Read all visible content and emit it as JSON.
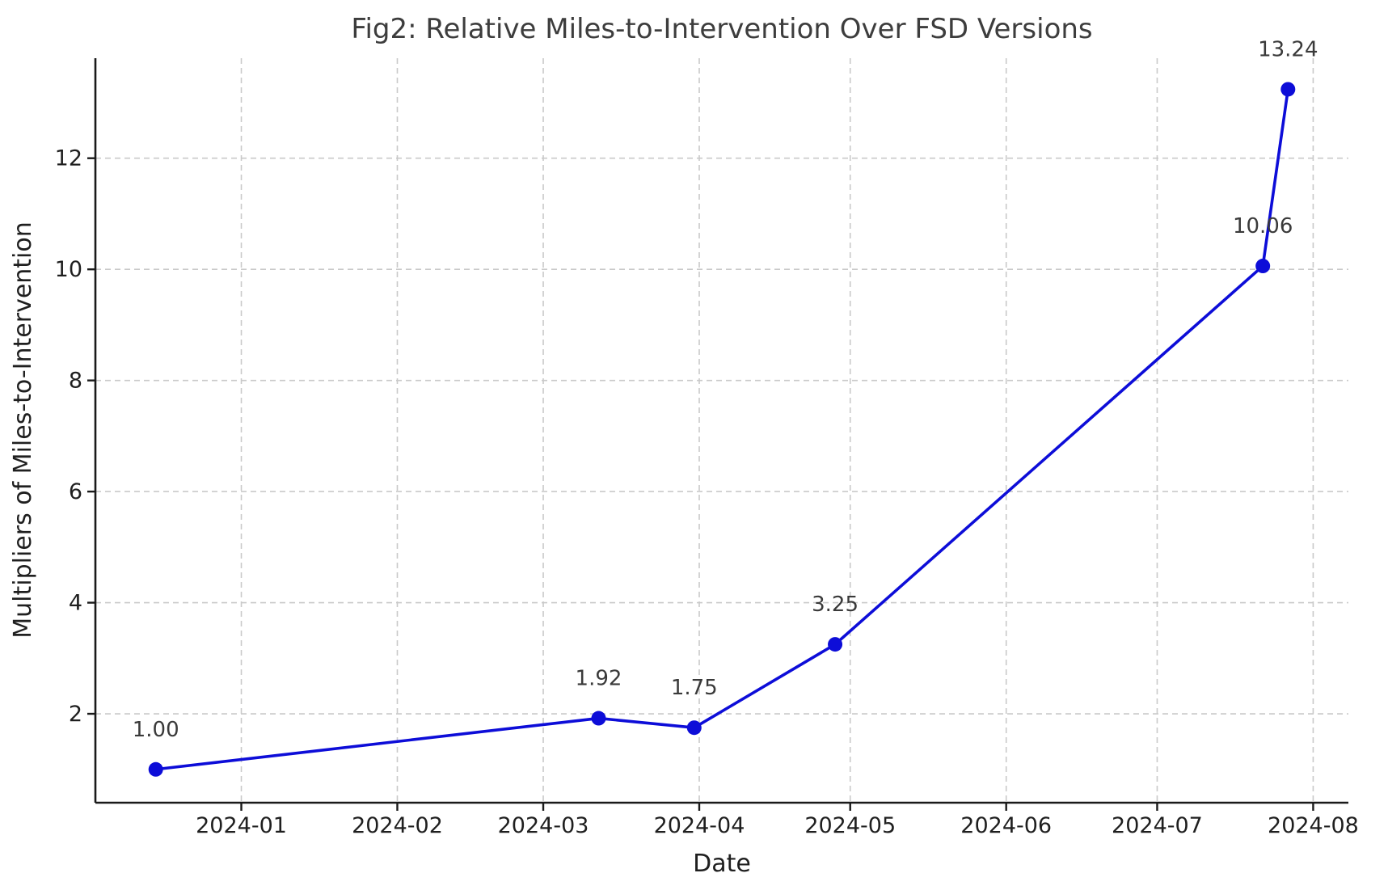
{
  "figure": {
    "background": "#ffffff"
  },
  "chart_data": {
    "type": "line",
    "title": "Fig2: Relative Miles-to-Intervention Over FSD Versions",
    "xlabel": "Date",
    "ylabel": "Multipliers of Miles-to-Intervention",
    "x": [
      "2023-12-15",
      "2024-03-12",
      "2024-03-31",
      "2024-04-28",
      "2024-07-22",
      "2024-07-27"
    ],
    "y": [
      1.0,
      1.92,
      1.75,
      3.25,
      10.06,
      13.24
    ],
    "point_labels": [
      "1.00",
      "1.92",
      "1.75",
      "3.25",
      "10.06",
      "13.24"
    ],
    "x_tick_labels": [
      "2024-01",
      "2024-02",
      "2024-03",
      "2024-04",
      "2024-05",
      "2024-06",
      "2024-07",
      "2024-08"
    ],
    "x_tick_dates": [
      "2024-01-01",
      "2024-02-01",
      "2024-03-01",
      "2024-04-01",
      "2024-05-01",
      "2024-06-01",
      "2024-07-01",
      "2024-08-01"
    ],
    "y_ticks": [
      2,
      4,
      6,
      8,
      10,
      12
    ],
    "xlim": [
      "2023-12-03",
      "2024-08-08"
    ],
    "ylim": [
      0.4,
      13.8
    ],
    "grid": true,
    "legend": false,
    "colors": {
      "line": "#0d0dd8",
      "marker": "#0d0dd8",
      "grid": "#c9c9c9",
      "spine": "#1a1a1a",
      "tick_text": "#1f1f1f",
      "annotation_text": "#3a3a3a",
      "title_text": "#3d3d3d",
      "axis_label_text": "#1f1f1f"
    }
  }
}
